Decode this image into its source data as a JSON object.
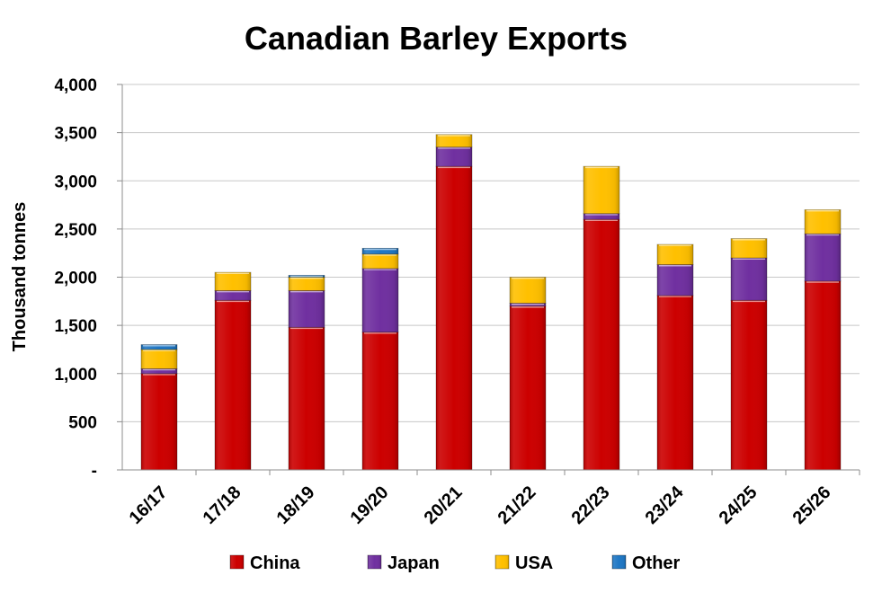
{
  "chart_data": {
    "type": "bar",
    "stacked": true,
    "title": "Canadian Barley Exports",
    "ylabel": "Thousand tonnes",
    "xlabel": "",
    "ylim": [
      0,
      4000
    ],
    "yticks": [
      {
        "value": 0,
        "label": "-"
      },
      {
        "value": 500,
        "label": "500"
      },
      {
        "value": 1000,
        "label": "1,000"
      },
      {
        "value": 1500,
        "label": "1,500"
      },
      {
        "value": 2000,
        "label": "2,000"
      },
      {
        "value": 2500,
        "label": "2,500"
      },
      {
        "value": 3000,
        "label": "3,000"
      },
      {
        "value": 3500,
        "label": "3,500"
      },
      {
        "value": 4000,
        "label": "4,000"
      }
    ],
    "grid": "horizontal",
    "legend": "bottom",
    "categories": [
      "16/17",
      "17/18",
      "18/19",
      "19/20",
      "20/21",
      "21/22",
      "22/23",
      "23/24",
      "24/25",
      "25/26"
    ],
    "series": [
      {
        "name": "China",
        "color": "#cc0000",
        "values": [
          1000,
          1760,
          1480,
          1430,
          3150,
          1700,
          2600,
          1810,
          1760,
          1960
        ]
      },
      {
        "name": "Japan",
        "color": "#7030a0",
        "values": [
          50,
          100,
          380,
          660,
          200,
          30,
          60,
          320,
          440,
          490
        ]
      },
      {
        "name": "USA",
        "color": "#ffc000",
        "values": [
          200,
          190,
          140,
          150,
          130,
          270,
          490,
          210,
          200,
          250
        ]
      },
      {
        "name": "Other",
        "color": "#1f77c4",
        "values": [
          50,
          0,
          20,
          60,
          0,
          0,
          0,
          0,
          0,
          0
        ]
      }
    ]
  }
}
